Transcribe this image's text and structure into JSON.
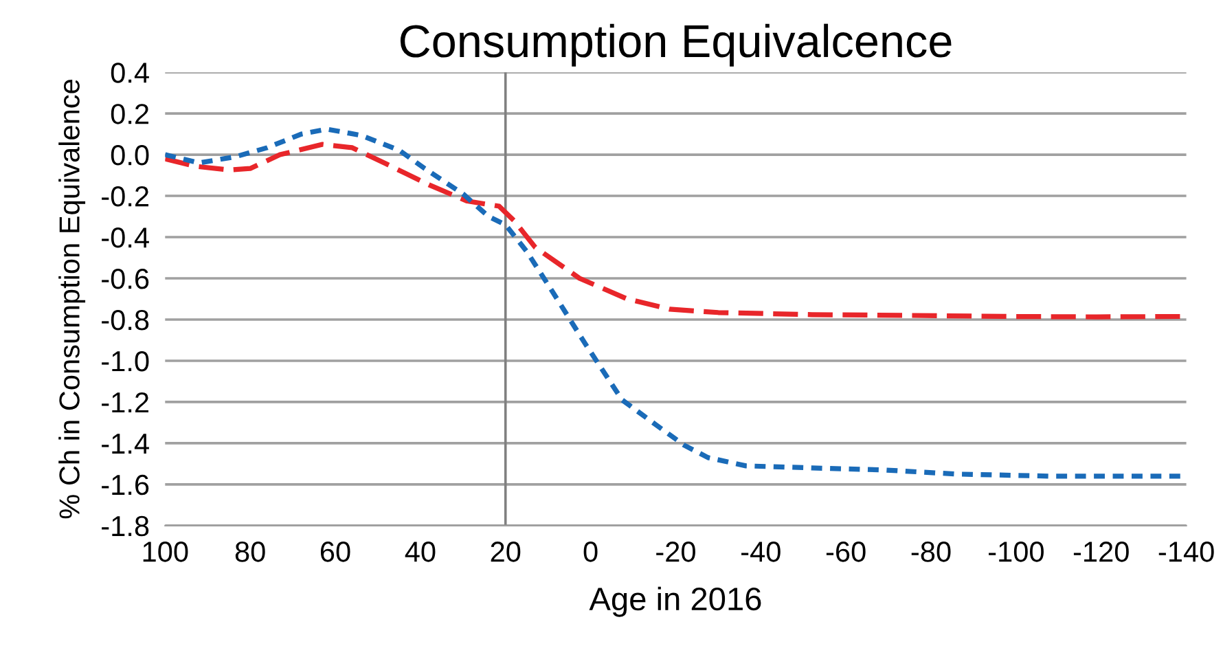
{
  "chart_data": {
    "type": "line",
    "title": "Consumption Equivalcence",
    "xlabel": "Age in 2016",
    "ylabel": "% Ch in Consumption Equivalence",
    "xlim": [
      100,
      -140
    ],
    "xticks": [
      100,
      80,
      60,
      40,
      20,
      0,
      -20,
      -40,
      -60,
      -80,
      -100,
      -120,
      -140
    ],
    "ylim": [
      -1.8,
      0.4
    ],
    "yticks": [
      {
        "value": 0.4,
        "label": "0.4"
      },
      {
        "value": 0.2,
        "label": "0.2"
      },
      {
        "value": 0,
        "label": "0.0"
      },
      {
        "value": -0.2,
        "label": "-0.2"
      },
      {
        "value": -0.4,
        "label": "-0.4"
      },
      {
        "value": -0.6,
        "label": "-0.6"
      },
      {
        "value": -0.8,
        "label": "-0.8"
      },
      {
        "value": -1,
        "label": "-1.0"
      },
      {
        "value": -1.2,
        "label": "-1.2"
      },
      {
        "value": -1.4,
        "label": "-1.4"
      },
      {
        "value": -1.6,
        "label": "-1.6"
      },
      {
        "value": -1.8,
        "label": "-1.8"
      }
    ],
    "grid": "y",
    "legend": false,
    "marker": "none",
    "ref_lines": [
      {
        "axis": "x",
        "value": 20,
        "color": "#808080",
        "line_style": "solid"
      }
    ],
    "series": [
      {
        "color": "#e8262a",
        "line_style": "dashed",
        "x": [
          100,
          93,
          85,
          80,
          73,
          63,
          56,
          48,
          38,
          29,
          21.5,
          18,
          13,
          2.6,
          -8.6,
          -18.6,
          -30,
          -52,
          -75,
          -97,
          -119,
          -140
        ],
        "values": [
          -0.02,
          -0.056,
          -0.074,
          -0.067,
          0.0,
          0.05,
          0.034,
          -0.045,
          -0.146,
          -0.225,
          -0.25,
          -0.32,
          -0.45,
          -0.6,
          -0.7,
          -0.75,
          -0.766,
          -0.776,
          -0.78,
          -0.785,
          -0.787,
          -0.785
        ]
      },
      {
        "color": "#1a6bb8",
        "line_style": "dotted",
        "x": [
          100,
          92,
          83.5,
          76,
          68,
          62,
          54,
          45,
          39,
          30,
          24,
          20,
          15,
          9.4,
          1.5,
          -7.4,
          -15.3,
          -22,
          -27.6,
          -36.5,
          -52,
          -69,
          -86,
          -108,
          -140
        ],
        "values": [
          0.0,
          -0.04,
          -0.01,
          0.034,
          0.1,
          0.124,
          0.094,
          0.022,
          -0.067,
          -0.19,
          -0.3,
          -0.34,
          -0.47,
          -0.65,
          -0.91,
          -1.19,
          -1.31,
          -1.41,
          -1.47,
          -1.51,
          -1.52,
          -1.53,
          -1.55,
          -1.56,
          -1.56
        ]
      }
    ]
  }
}
